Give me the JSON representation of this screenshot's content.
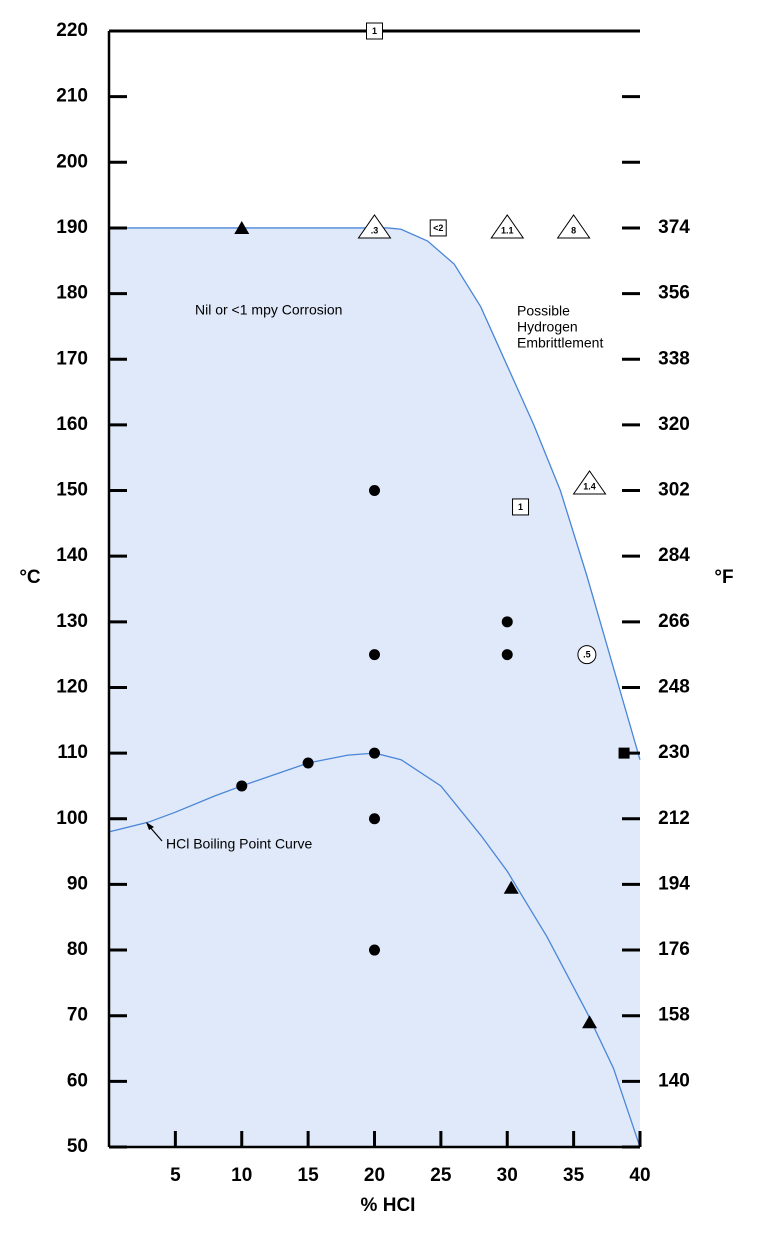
{
  "chart_data": {
    "type": "region",
    "x_label": "% HCI",
    "y_label": "°C",
    "y2_label": "°F",
    "xlim": [
      0,
      40
    ],
    "xticks": [
      5,
      10,
      15,
      20,
      25,
      30,
      35,
      40
    ],
    "ylim": [
      50,
      220
    ],
    "yticks": [
      50,
      60,
      70,
      80,
      90,
      100,
      110,
      120,
      130,
      140,
      150,
      160,
      170,
      180,
      190,
      200,
      210,
      220
    ],
    "y2lim": [
      122,
      428
    ],
    "y2ticks": [
      140,
      158,
      176,
      194,
      212,
      230,
      248,
      266,
      284,
      302,
      320,
      338,
      356,
      374
    ],
    "region_color": "#e0e9f9",
    "curve_color": "#4a86d8",
    "curves": [
      {
        "x": [
          0,
          20,
          21,
          22,
          24,
          26,
          28,
          30,
          32,
          34,
          36,
          38,
          40
        ],
        "values": [
          190,
          190,
          190,
          189.8,
          188,
          184.5,
          178,
          169,
          160,
          150,
          137,
          123,
          109
        ]
      },
      {
        "x": [
          0,
          3,
          5,
          8,
          10,
          15,
          18,
          20,
          22,
          25,
          28,
          30,
          33,
          36,
          38,
          40
        ],
        "values": [
          98,
          99.5,
          101,
          103.5,
          105,
          108.5,
          109.7,
          110,
          109,
          105,
          97.5,
          92,
          82,
          70.5,
          62,
          50
        ]
      }
    ],
    "markers": [
      {
        "marker": "circle",
        "filled": true,
        "x": [
          20,
          20,
          30,
          30,
          20,
          20,
          20,
          10,
          15
        ],
        "values": [
          150,
          125,
          130,
          125,
          110,
          100,
          80,
          105,
          108.5
        ]
      },
      {
        "marker": "triangle",
        "filled": true,
        "x": [
          10,
          30.3,
          36.2
        ],
        "values": [
          190,
          89.5,
          69
        ]
      },
      {
        "marker": "square",
        "filled": true,
        "x": [
          38.8
        ],
        "values": [
          110
        ]
      },
      {
        "marker": "triangle",
        "filled": false,
        "x": [
          20,
          30,
          35,
          36.2
        ],
        "values": [
          190,
          190,
          190,
          151
        ],
        "labels": [
          ".3",
          "1.1",
          "8",
          "1.4"
        ]
      },
      {
        "marker": "square",
        "filled": false,
        "x": [
          20,
          24.8,
          31
        ],
        "values": [
          220,
          190,
          147.5
        ],
        "labels": [
          "1",
          "<2",
          "1"
        ]
      },
      {
        "marker": "circle",
        "filled": false,
        "x": [
          36
        ],
        "values": [
          125
        ],
        "labels": [
          ".5"
        ]
      }
    ],
    "annotations": [
      "Nil or <1 mpy Corrosion",
      "Possible",
      "Hydrogen",
      "Embrittlement",
      "HCl Boiling Point Curve"
    ]
  }
}
